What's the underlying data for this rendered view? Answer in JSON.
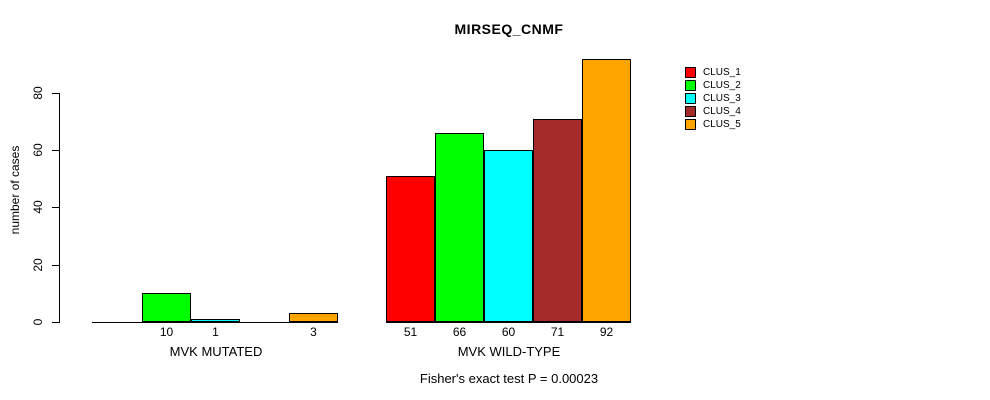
{
  "title": "MIRSEQ_CNMF",
  "chart_data": {
    "type": "bar",
    "title": "MIRSEQ_CNMF",
    "xlabel": "",
    "ylabel": "number of cases",
    "ylim": [
      0,
      92
    ],
    "yticks": [
      0,
      20,
      40,
      60,
      80
    ],
    "grid": false,
    "legend_position": "right-outside",
    "categories": [
      "MVK MUTATED",
      "MVK WILD-TYPE"
    ],
    "series": [
      {
        "name": "CLUS_1",
        "color": "#FF0000",
        "values": [
          0,
          51
        ]
      },
      {
        "name": "CLUS_2",
        "color": "#00FF00",
        "values": [
          10,
          66
        ]
      },
      {
        "name": "CLUS_3",
        "color": "#00FFFF",
        "values": [
          1,
          60
        ]
      },
      {
        "name": "CLUS_4",
        "color": "#A52A2A",
        "values": [
          0,
          71
        ]
      },
      {
        "name": "CLUS_5",
        "color": "#FFA500",
        "values": [
          3,
          92
        ]
      }
    ],
    "bar_value_labels": {
      "MVK MUTATED": [
        null,
        10,
        1,
        null,
        3
      ],
      "MVK WILD-TYPE": [
        51,
        66,
        60,
        71,
        92
      ]
    },
    "annotation": "Fisher's exact test P = 0.00023",
    "axis_color": "#000000",
    "bar_border_color": "#000000",
    "background_color": "#FFFFFF"
  }
}
